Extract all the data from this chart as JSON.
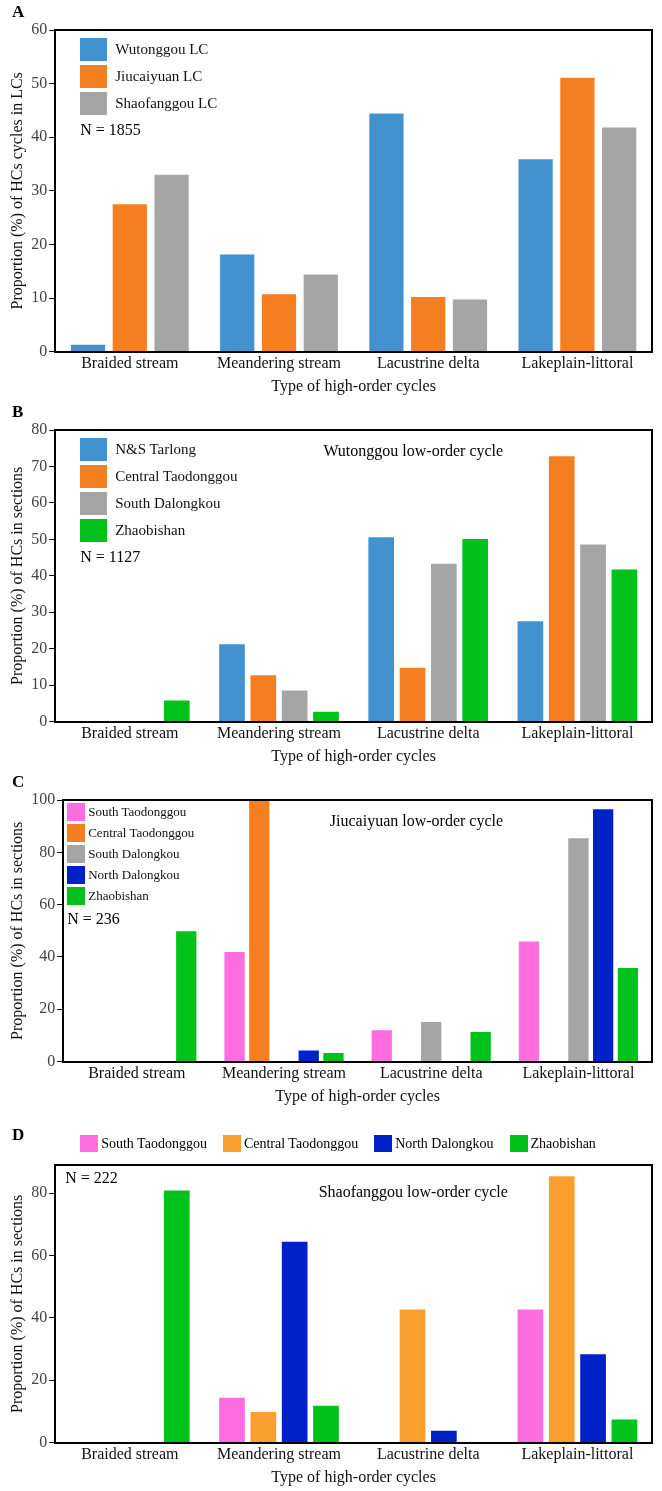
{
  "chart_data": [
    {
      "type": "bar",
      "title": "A",
      "xlabel": "Type of high-order cycles",
      "ylabel": "Proportion (%) of HCs cycles in LCs",
      "categories": [
        "Braided stream",
        "Meandering stream",
        "Lacustrine delta",
        "Lakeplain-littoral"
      ],
      "ylim": [
        0,
        60
      ],
      "yticks": [
        0,
        10,
        20,
        30,
        40,
        50,
        60
      ],
      "grid": false,
      "legend": "top left",
      "annotations": [
        "N = 1855"
      ],
      "series": [
        {
          "name": "Wutonggou LC",
          "color": "#4392d0",
          "values": [
            1.3,
            18.1,
            44.4,
            35.9
          ]
        },
        {
          "name": "Jiucaiyuan LC",
          "color": "#f47f20",
          "values": [
            27.5,
            10.7,
            10.2,
            51.1
          ]
        },
        {
          "name": "Shaofanggou LC",
          "color": "#a5a5a5",
          "values": [
            33,
            14.4,
            9.7,
            41.8
          ]
        }
      ]
    },
    {
      "type": "bar",
      "title": "B",
      "subtitle": "Wutonggou low-order cycle",
      "xlabel": "Type of high-order cycles",
      "ylabel": "Proportion (%) of HCs in sections",
      "categories": [
        "Braided stream",
        "Meandering stream",
        "Lacustrine delta",
        "Lakeplain-littoral"
      ],
      "ylim": [
        0,
        80
      ],
      "yticks": [
        0,
        10,
        20,
        30,
        40,
        50,
        60,
        70,
        80
      ],
      "grid": false,
      "legend": "top left",
      "annotations": [
        "N = 1127"
      ],
      "series": [
        {
          "name": "N&S Tarlong",
          "color": "#4392d0",
          "values": [
            null,
            21.2,
            50.6,
            27.5
          ]
        },
        {
          "name": "Central Taodonggou",
          "color": "#f47f20",
          "values": [
            0,
            12.7,
            14.8,
            72.8
          ]
        },
        {
          "name": "South Dalongkou",
          "color": "#a5a5a5",
          "values": [
            0,
            8.5,
            43.3,
            48.6
          ]
        },
        {
          "name": "Zhaobishan",
          "color": "#00c21a",
          "values": [
            5.8,
            2.7,
            50.1,
            41.7
          ]
        }
      ]
    },
    {
      "type": "bar",
      "title": "C",
      "subtitle": "Jiucaiyuan low-order cycle",
      "xlabel": "Type of high-order cycles",
      "ylabel": "Proportion (%) of HCs in sections",
      "categories": [
        "Braided stream",
        "Meandering stream",
        "Lacustrine delta",
        "Lakeplain-littoral"
      ],
      "ylim": [
        0,
        100
      ],
      "yticks": [
        0,
        20,
        40,
        60,
        80,
        100
      ],
      "grid": false,
      "legend": "top left",
      "annotations": [
        "N = 236"
      ],
      "series": [
        {
          "name": "South Taodonggou",
          "color": "#ff6ee0",
          "values": [
            0,
            41.9,
            12,
            45.9
          ]
        },
        {
          "name": "Central Taodonggou",
          "color": "#f47f20",
          "values": [
            0,
            100,
            0,
            0
          ]
        },
        {
          "name": "South Dalongkou",
          "color": "#a5a5a5",
          "values": [
            0,
            0,
            15.1,
            85.4
          ]
        },
        {
          "name": "North Dalongkou",
          "color": "#0020c8",
          "values": [
            0,
            4.2,
            0,
            96.5
          ]
        },
        {
          "name": "Zhaobishan",
          "color": "#00c21a",
          "values": [
            49.8,
            3.3,
            11.3,
            35.8
          ]
        }
      ]
    },
    {
      "type": "bar",
      "title": "D",
      "subtitle": "Shaofanggou low-order cycle",
      "xlabel": "Type of high-order cycles",
      "ylabel": "Proportion (%) of HCs in sections",
      "categories": [
        "Braided stream",
        "Meandering stream",
        "Lacustrine delta",
        "Lakeplain-littoral"
      ],
      "ylim": [
        0,
        89
      ],
      "yticks": [
        0,
        20,
        40,
        60,
        80
      ],
      "grid": false,
      "legend": "top",
      "annotations": [
        "N = 222"
      ],
      "series": [
        {
          "name": "South Taodonggou",
          "color": "#ff6ee0",
          "values": [
            0,
            14.4,
            0,
            42.7
          ]
        },
        {
          "name": "Central Taodonggou",
          "color": "#fa9e2f",
          "values": [
            0,
            9.8,
            42.7,
            85.4
          ]
        },
        {
          "name": "North Dalongkou",
          "color": "#0020c8",
          "values": [
            0,
            64.4,
            3.8,
            28.3
          ]
        },
        {
          "name": "Zhaobishan",
          "color": "#00c21a",
          "values": [
            80.8,
            11.8,
            0,
            7.4
          ]
        }
      ]
    }
  ]
}
